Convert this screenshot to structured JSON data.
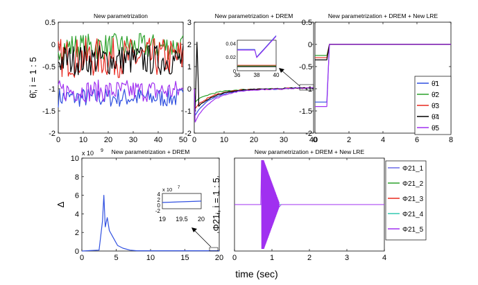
{
  "chart_data": [
    {
      "id": "p1",
      "type": "line",
      "title": "New parametrization",
      "ylabel": "θ̃ᵢ, i = 1 : 5",
      "xlim": [
        0,
        50
      ],
      "ylim": [
        -2,
        0.5
      ],
      "xticks": [
        "0",
        "10",
        "20",
        "30",
        "40",
        "50"
      ],
      "yticks": [
        "-2",
        "-1.5",
        "-1",
        "-0.5",
        "0",
        "0.5"
      ],
      "series": [
        {
          "name": "θ̃1",
          "color": "#2f4fe0",
          "pattern": "noise",
          "base": -1.2,
          "amp": 0.22
        },
        {
          "name": "θ̃2",
          "color": "#2aa02a",
          "pattern": "noise",
          "base": -0.05,
          "amp": 0.3
        },
        {
          "name": "θ̃3",
          "color": "#e8281f",
          "pattern": "noise",
          "base": -0.3,
          "amp": 0.45
        },
        {
          "name": "θ̃4",
          "color": "#000000",
          "pattern": "noise",
          "base": -0.35,
          "amp": 0.35
        },
        {
          "name": "θ̃5",
          "color": "#a030f0",
          "pattern": "noise",
          "base": -1.05,
          "amp": 0.25
        }
      ]
    },
    {
      "id": "p2",
      "type": "line",
      "title": "New parametrization + DREM",
      "xlim": [
        0,
        40
      ],
      "ylim": [
        -2,
        3
      ],
      "xticks": [
        "0",
        "10",
        "20",
        "30",
        "40"
      ],
      "yticks": [
        "-2",
        "-1",
        "0",
        "1",
        "2",
        "3"
      ],
      "series": [
        {
          "name": "θ̃1",
          "color": "#2f4fe0",
          "pattern": "converge",
          "start": -1.2
        },
        {
          "name": "θ̃2",
          "color": "#2aa02a",
          "pattern": "converge",
          "start": -0.6
        },
        {
          "name": "θ̃3",
          "color": "#e8281f",
          "pattern": "converge",
          "start": -0.9
        },
        {
          "name": "θ̃4",
          "color": "#000000",
          "pattern": "converge",
          "start": -1.0
        },
        {
          "name": "θ̃5",
          "color": "#a030f0",
          "pattern": "converge",
          "start": -1.5
        }
      ],
      "inset": {
        "xlim": [
          36,
          40
        ],
        "ylim": [
          0,
          0.045
        ],
        "xticks": [
          "36",
          "38",
          "40"
        ],
        "yticks": [
          "0",
          "0.02",
          "0.04"
        ]
      }
    },
    {
      "id": "p3",
      "type": "line",
      "title": "New parametrization + DREM + New LRE",
      "xlim": [
        0,
        8
      ],
      "ylim": [
        -2,
        0.5
      ],
      "xticks": [
        "0",
        "2",
        "4",
        "6",
        "8"
      ],
      "yticks": [
        "-2",
        "-1.5",
        "-1",
        "-0.5",
        "0",
        "0.5"
      ],
      "series": [
        {
          "name": "θ̃1",
          "color": "#2f4fe0",
          "pattern": "step",
          "start": -1.3
        },
        {
          "name": "θ̃2",
          "color": "#2aa02a",
          "pattern": "step",
          "start": -0.25
        },
        {
          "name": "θ̃3",
          "color": "#e8281f",
          "pattern": "step",
          "start": -0.3
        },
        {
          "name": "θ̃4",
          "color": "#000000",
          "pattern": "step",
          "start": -0.35
        },
        {
          "name": "θ̃5",
          "color": "#a030f0",
          "pattern": "step",
          "start": -1.4
        }
      ],
      "legend": [
        "θ̃1",
        "θ̃2",
        "θ̃3",
        "θ̃4",
        "θ̃5"
      ]
    },
    {
      "id": "p4",
      "type": "line",
      "title": "New parametrization + DREM",
      "ylabel": "Δ",
      "multiplier": "x 10",
      "multiplier_exp": "9",
      "xlim": [
        0,
        20
      ],
      "ylim": [
        0,
        10
      ],
      "xticks": [
        "0",
        "5",
        "10",
        "15",
        "20"
      ],
      "yticks": [
        "0",
        "2",
        "4",
        "6",
        "8",
        "10"
      ],
      "series": [
        {
          "name": "Δ",
          "color": "#2f4fe0",
          "pattern": "spike"
        }
      ],
      "inset": {
        "multiplier": "x 10",
        "multiplier_exp": "7",
        "xlim": [
          19,
          20
        ],
        "ylim": [
          -2,
          4
        ],
        "xticks": [
          "19",
          "19.5",
          "20"
        ],
        "yticks": [
          "-2",
          "0",
          "2",
          "4"
        ]
      }
    },
    {
      "id": "p5",
      "type": "line",
      "title": "New parametrization + DREM + New LRE",
      "ylabel": "Φ21ᵢ, i = 1 : 5",
      "xlim": [
        0,
        4
      ],
      "ylim": [
        -1,
        1
      ],
      "xticks": [
        "0",
        "1",
        "2",
        "3",
        "4"
      ],
      "yticks": [],
      "series": [
        {
          "name": "Φ21_1",
          "color": "#6a6ae8",
          "pattern": "burst"
        },
        {
          "name": "Φ21_2",
          "color": "#2aa02a",
          "pattern": "burst"
        },
        {
          "name": "Φ21_3",
          "color": "#e8281f",
          "pattern": "burst"
        },
        {
          "name": "Φ21_4",
          "color": "#30c8b0",
          "pattern": "burst"
        },
        {
          "name": "Φ21_5",
          "color": "#a030f0",
          "pattern": "burst"
        }
      ],
      "legend": [
        "Φ21_1",
        "Φ21_2",
        "Φ21_3",
        "Φ21_4",
        "Φ21_5"
      ]
    }
  ],
  "xlabel": "time (sec)"
}
